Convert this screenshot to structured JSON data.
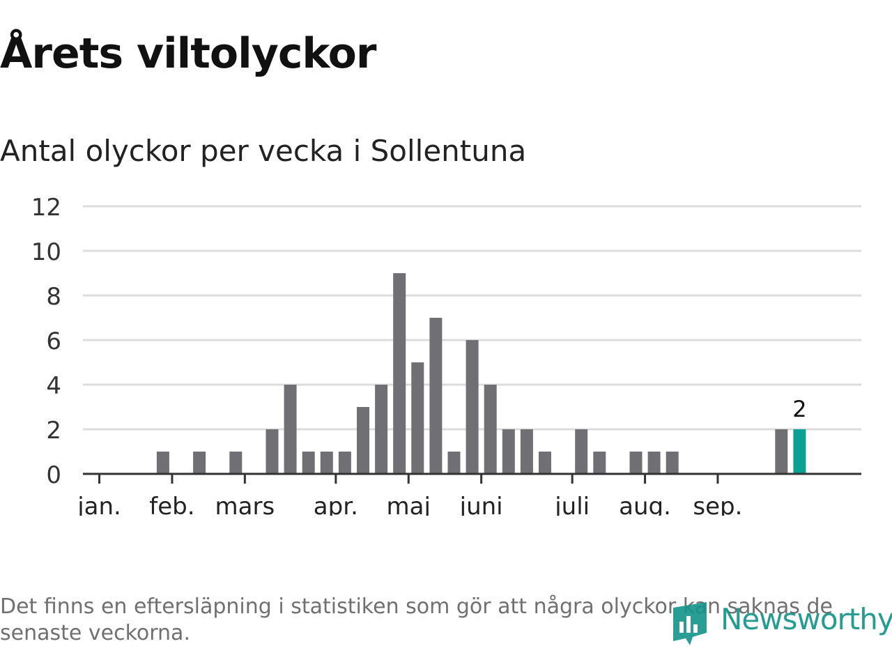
{
  "title": "Årets viltolyckor",
  "subtitle": "Antal olyckor per vecka i Sollentuna",
  "footnote": "Det finns en eftersläpning i statistiken som gör att några olyckor kan saknas de senaste veckorna.",
  "brand": {
    "name": "Newsworthy",
    "icon": "newsworthy-logo-icon"
  },
  "colors": {
    "bar": "#706f74",
    "highlight": "#0aa192",
    "grid": "#dcdcdc",
    "axis": "#333333"
  },
  "chart_data": {
    "type": "bar",
    "title": "Antal olyckor per vecka i Sollentuna",
    "xlabel": "",
    "ylabel": "",
    "ylim": [
      0,
      12
    ],
    "yticks": [
      "0",
      "2",
      "4",
      "6",
      "8",
      "10",
      "12"
    ],
    "grid": true,
    "weeks": [
      1,
      2,
      3,
      4,
      5,
      6,
      7,
      8,
      9,
      10,
      11,
      12,
      13,
      14,
      15,
      16,
      17,
      18,
      19,
      20,
      21,
      22,
      23,
      24,
      25,
      26,
      27,
      28,
      29,
      30,
      31,
      32,
      33,
      34,
      35,
      36,
      37,
      38,
      39,
      40,
      41,
      42,
      43
    ],
    "values": [
      0,
      0,
      0,
      0,
      1,
      0,
      1,
      0,
      1,
      0,
      2,
      4,
      1,
      1,
      1,
      3,
      4,
      9,
      5,
      7,
      1,
      6,
      4,
      2,
      2,
      1,
      0,
      2,
      1,
      0,
      1,
      1,
      1,
      0,
      0,
      0,
      0,
      0,
      2,
      2,
      0,
      0,
      0
    ],
    "month_labels": [
      {
        "label": "jan.",
        "week": 1.5
      },
      {
        "label": "feb.",
        "week": 5.5
      },
      {
        "label": "mars",
        "week": 9.5
      },
      {
        "label": "apr.",
        "week": 14.5
      },
      {
        "label": "maj",
        "week": 18.5
      },
      {
        "label": "juni",
        "week": 22.5
      },
      {
        "label": "juli",
        "week": 27.5
      },
      {
        "label": "aug.",
        "week": 31.5
      },
      {
        "label": "sep.",
        "week": 35.5
      }
    ],
    "highlight": {
      "week": 40,
      "value": 2,
      "label": "2"
    }
  }
}
